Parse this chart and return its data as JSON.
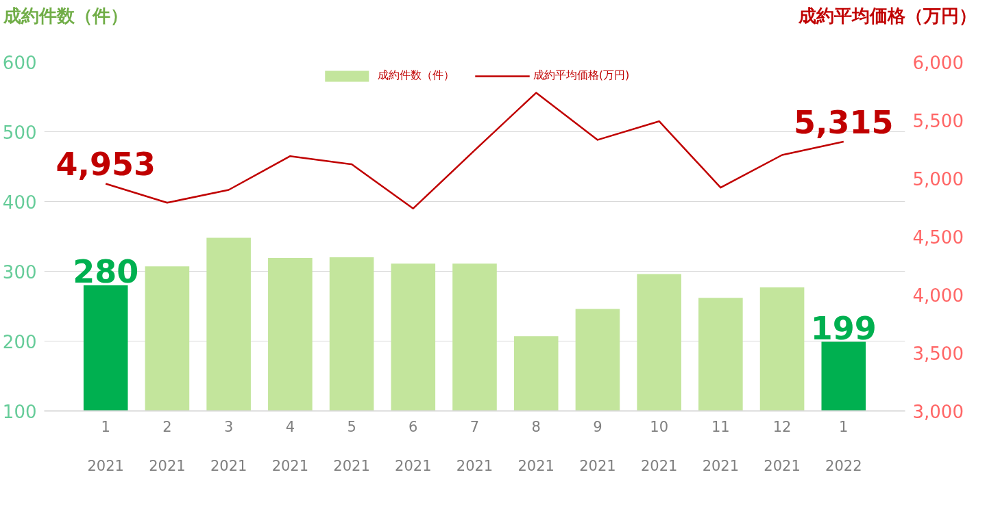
{
  "chart_data": {
    "type": "bar",
    "ylabel": "成約件数（件）",
    "y2label": "成約平均価格（万円）",
    "categories": [
      "1\n2021",
      "2\n2021",
      "3\n2021",
      "4\n2021",
      "5\n2021",
      "6\n2021",
      "7\n2021",
      "8\n2021",
      "9\n2021",
      "10\n2021",
      "11\n2021",
      "12\n2021",
      "1\n2022"
    ],
    "series": [
      {
        "name": "成約件数（件）",
        "type": "bar",
        "color": "#c3e59c",
        "colors": [
          "#00b050",
          "#c3e59c",
          "#c3e59c",
          "#c3e59c",
          "#c3e59c",
          "#c3e59c",
          "#c3e59c",
          "#c3e59c",
          "#c3e59c",
          "#c3e59c",
          "#c3e59c",
          "#c3e59c",
          "#00b050"
        ],
        "values": [
          280,
          307,
          348,
          319,
          320,
          311,
          311,
          207,
          246,
          296,
          262,
          277,
          199
        ],
        "value_labels": [
          "280",
          null,
          null,
          null,
          null,
          null,
          null,
          null,
          null,
          null,
          null,
          null,
          "199"
        ]
      },
      {
        "name": "成約平均価格(万円)",
        "type": "line",
        "axis": "y2",
        "color": "#c00000",
        "values": [
          4953,
          4790,
          4900,
          5190,
          5120,
          4740,
          5240,
          5735,
          5330,
          5490,
          4920,
          5200,
          5315
        ],
        "value_labels": [
          "4,953",
          null,
          null,
          null,
          null,
          null,
          null,
          null,
          null,
          null,
          null,
          null,
          "5,315"
        ]
      }
    ],
    "ylim": [
      100,
      600
    ],
    "yticks": [
      100,
      200,
      300,
      400,
      500,
      600
    ],
    "y2lim": [
      3000,
      6000
    ],
    "y2ticks": [
      {
        "value": 3000,
        "label": "3,000"
      },
      {
        "value": 3500,
        "label": "3,500"
      },
      {
        "value": 4000,
        "label": "4,000"
      },
      {
        "value": 4500,
        "label": "4,500"
      },
      {
        "value": 5000,
        "label": "5,000"
      },
      {
        "value": 5500,
        "label": "5,500"
      },
      {
        "value": 6000,
        "label": "6,000"
      }
    ],
    "grid": "y",
    "legend": "top"
  }
}
